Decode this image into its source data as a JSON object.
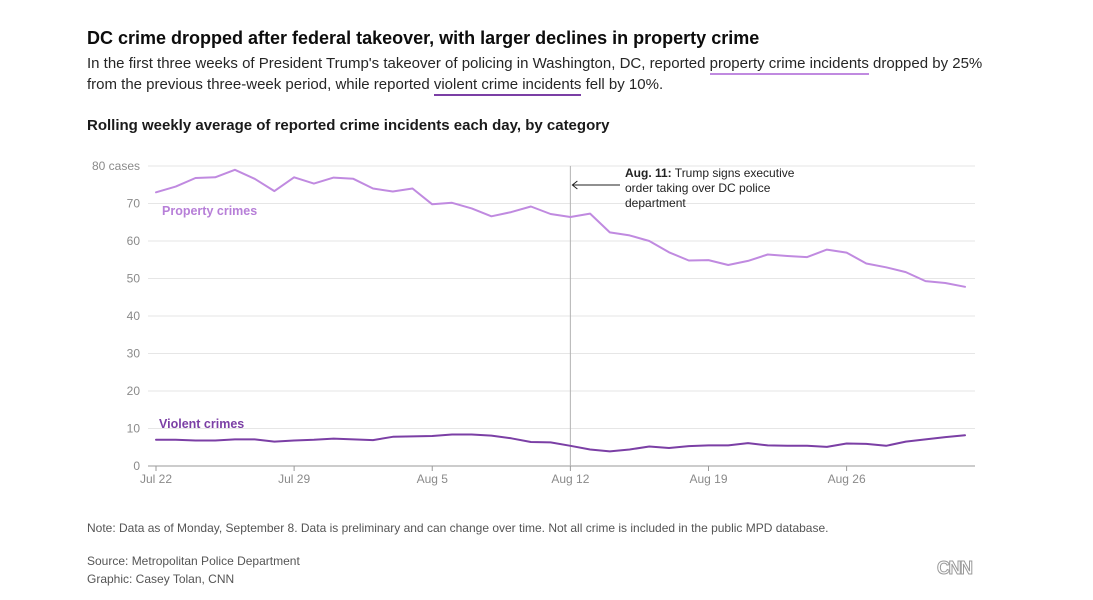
{
  "header": {
    "title": "DC crime dropped after federal takeover, with larger declines in property crime",
    "dek_part1": "In the first three weeks of President Trump's takeover of policing in Washington, DC, reported ",
    "dek_hl1": "property crime incidents",
    "dek_part2": " dropped by 25% from the previous three-week period, while reported ",
    "dek_hl2": "violent crime incidents",
    "dek_part3": " fell by 10%.",
    "subtitle": "Rolling weekly average of reported crime incidents each day, by category"
  },
  "chart_data": {
    "type": "line",
    "y_ticks": [
      "0",
      "10",
      "20",
      "30",
      "40",
      "50",
      "60",
      "70",
      "80 cases"
    ],
    "ylim": [
      0,
      80
    ],
    "x_tick_labels": [
      "Jul 22",
      "Jul 29",
      "Aug 5",
      "Aug 12",
      "Aug 19",
      "Aug 26"
    ],
    "x_tick_days": [
      0,
      7,
      14,
      21,
      28,
      35
    ],
    "x_days_span": [
      0,
      41
    ],
    "series": [
      {
        "name": "Property crimes",
        "color": "#c08ae0",
        "values": [
          73,
          74.5,
          76.8,
          77,
          79,
          76.6,
          73.3,
          77,
          75.3,
          76.9,
          76.6,
          74,
          73.2,
          74,
          69.8,
          70.2,
          68.7,
          66.6,
          67.7,
          69.2,
          67.2,
          66.4,
          67.3,
          62.3,
          61.5,
          60,
          57,
          54.8,
          54.9,
          53.6,
          54.7,
          56.4,
          56,
          55.7,
          57.7,
          56.9,
          54,
          53,
          51.7,
          49.3,
          48.8,
          47.8
        ]
      },
      {
        "name": "Violent crimes",
        "color": "#7b3fa5",
        "values": [
          7,
          7,
          6.8,
          6.8,
          7.1,
          7.1,
          6.5,
          6.8,
          7,
          7.3,
          7.1,
          6.9,
          7.8,
          7.9,
          8,
          8.4,
          8.4,
          8.1,
          7.4,
          6.4,
          6.3,
          5.4,
          4.4,
          3.9,
          4.4,
          5.2,
          4.8,
          5.3,
          5.5,
          5.5,
          6.1,
          5.5,
          5.4,
          5.4,
          5.1,
          6,
          5.9,
          5.4,
          6.5,
          7.1,
          7.7,
          8.2
        ]
      }
    ],
    "annotation": {
      "day": 21,
      "bold": "Aug. 11:",
      "line1": " Trump signs executive",
      "line2": "order taking over DC police",
      "line3": "department"
    }
  },
  "footer": {
    "note": "Note: Data as of Monday, September 8. Data is preliminary and can change over time. Not all crime is included in the public MPD database.",
    "source": "Source: Metropolitan Police Department",
    "credit": "Graphic: Casey Tolan, CNN",
    "logo_text": "CNN"
  }
}
